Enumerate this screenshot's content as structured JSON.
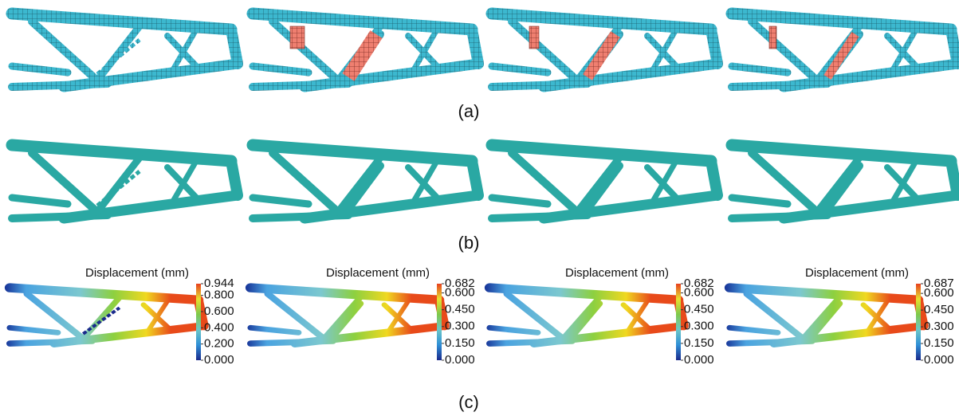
{
  "panels": [
    {
      "label": "(a)"
    },
    {
      "label": "(b)"
    },
    {
      "label": "(c)",
      "colorbars": [
        {
          "title": "Displacement (mm)",
          "ticks": [
            0.944,
            {
              "value": 0.8,
              "label": "0.800"
            },
            {
              "value": 0.6,
              "label": "0.600"
            },
            {
              "value": 0.4,
              "label": "0.400"
            },
            {
              "value": 0.2,
              "label": "0.200"
            },
            {
              "value": 0,
              "label": "0.000"
            }
          ]
        },
        {
          "title": "Displacement (mm)",
          "ticks": [
            0.682,
            {
              "value": 0.6,
              "label": "0.600"
            },
            {
              "value": 0.45,
              "label": "0.450"
            },
            {
              "value": 0.3,
              "label": "0.300"
            },
            {
              "value": 0.15,
              "label": "0.150"
            },
            {
              "value": 0,
              "label": "0.000"
            }
          ]
        },
        {
          "title": "Displacement (mm)",
          "ticks": [
            0.682,
            {
              "value": 0.6,
              "label": "0.600"
            },
            {
              "value": 0.45,
              "label": "0.450"
            },
            {
              "value": 0.3,
              "label": "0.300"
            },
            {
              "value": 0.15,
              "label": "0.150"
            },
            {
              "value": 0,
              "label": "0.000"
            }
          ]
        },
        {
          "title": "Displacement (mm)",
          "ticks": [
            0.687,
            {
              "value": 0.6,
              "label": "0.600"
            },
            {
              "value": 0.45,
              "label": "0.450"
            },
            {
              "value": 0.3,
              "label": "0.300"
            },
            {
              "value": 0.15,
              "label": "0.150"
            },
            {
              "value": 0,
              "label": "0.000"
            }
          ]
        }
      ]
    }
  ]
}
